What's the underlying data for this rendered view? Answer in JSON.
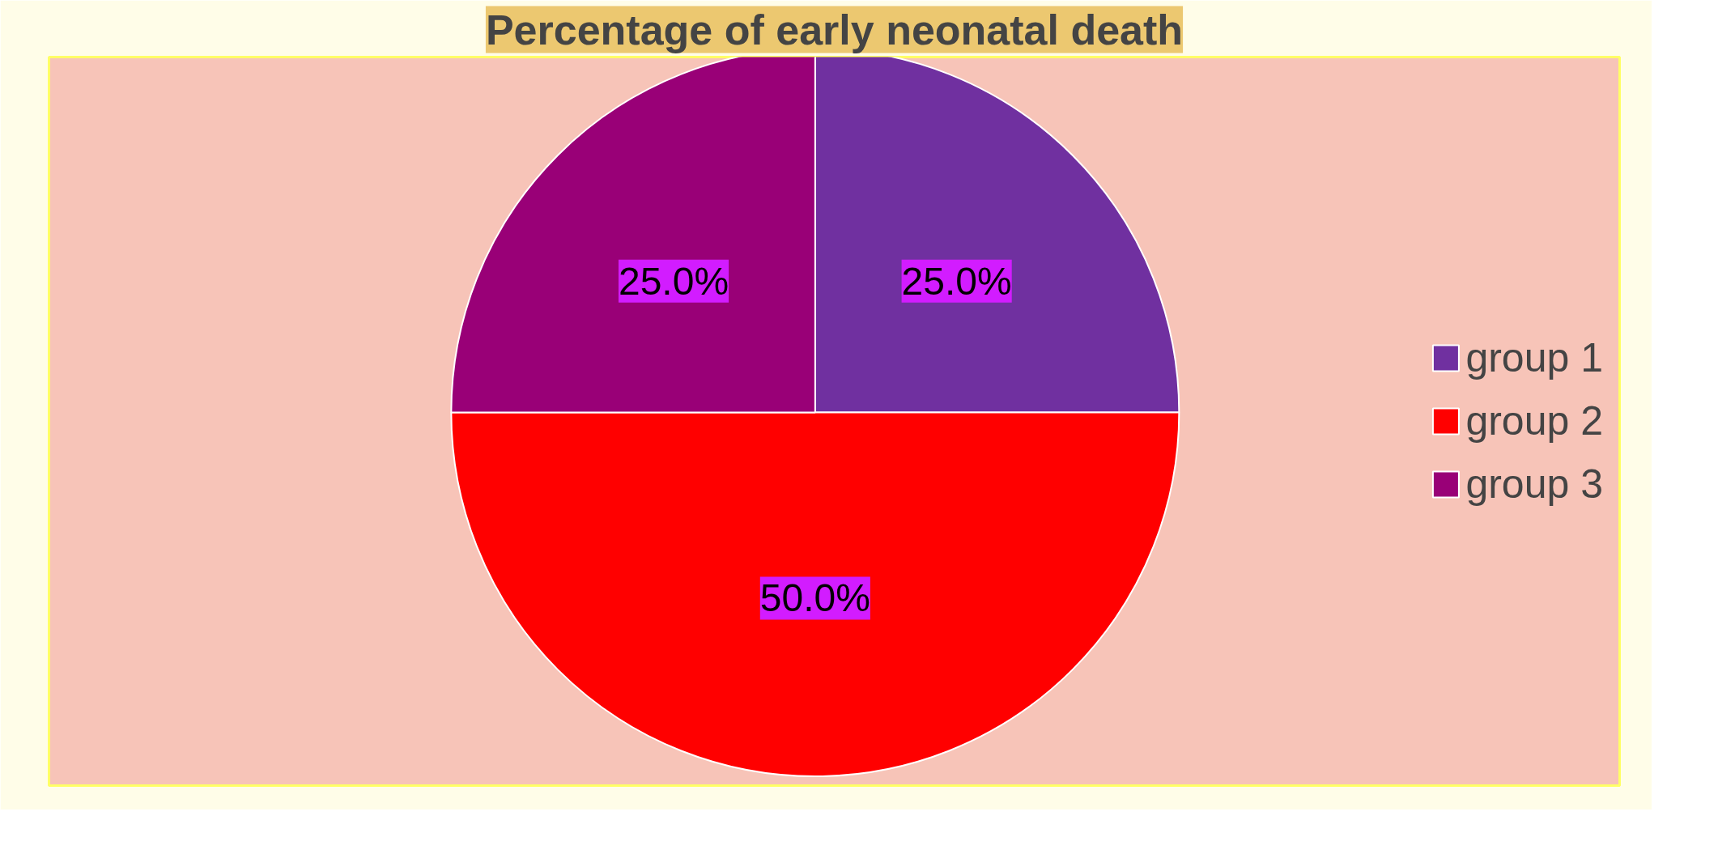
{
  "chart_data": {
    "type": "pie",
    "title": "Percentage of early neonatal death",
    "categories": [
      "group 1",
      "group 2",
      "group 3"
    ],
    "values": [
      25,
      50,
      25
    ],
    "colors": [
      "#7030a0",
      "#ff0000",
      "#990077"
    ],
    "value_labels": [
      "25.0%",
      "50.0%",
      "25.0%"
    ],
    "legend": "right"
  }
}
